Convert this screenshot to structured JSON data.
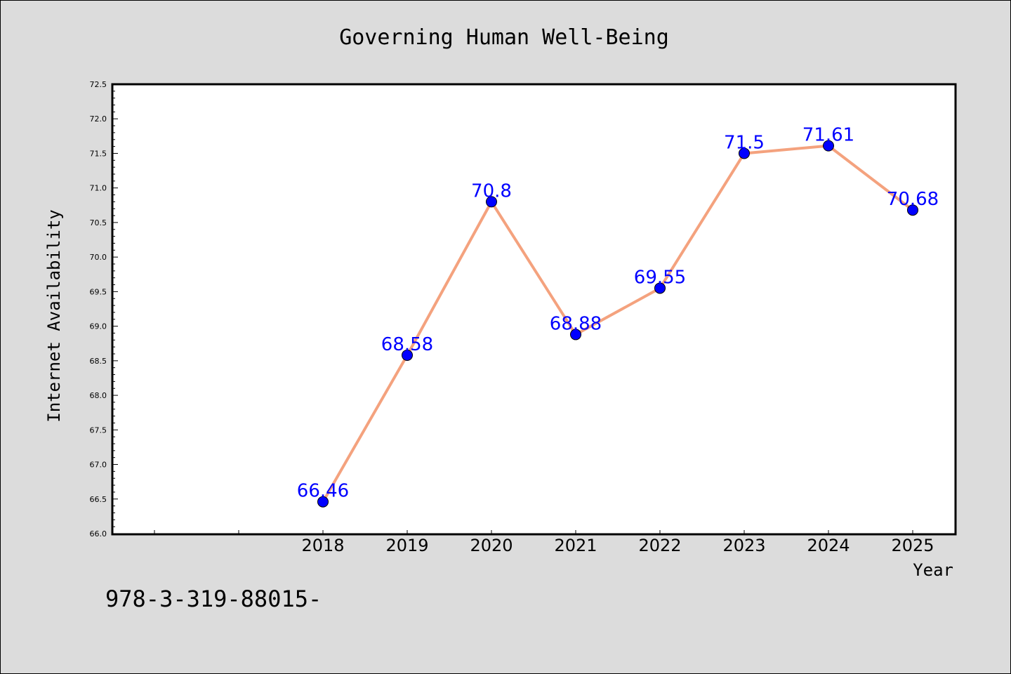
{
  "chart_data": {
    "type": "line",
    "title": "Governing Human Well-Being",
    "xlabel": "Year",
    "ylabel": "Internet Availability",
    "x": [
      "2018",
      "2019",
      "2020",
      "2021",
      "2022",
      "2023",
      "2024",
      "2025"
    ],
    "series": [
      {
        "values": [
          66.46,
          68.58,
          70.8,
          68.88,
          69.55,
          71.5,
          71.61,
          70.68
        ]
      }
    ],
    "data_labels": [
      "66.46",
      "68.58",
      "70.8",
      "68.88",
      "69.55",
      "71.5",
      "71.61",
      "70.68"
    ],
    "ylim": [
      66.0,
      72.5
    ],
    "yticks": [
      "66.0",
      "66.5",
      "67.0",
      "67.5",
      "68.0",
      "68.5",
      "69.0",
      "69.5",
      "70.0",
      "70.5",
      "71.0",
      "71.5",
      "72.0",
      "72.5"
    ],
    "grid": false,
    "colors": {
      "line": "#f4a27e",
      "marker": "#0000ff",
      "label": "#0000ff",
      "plot_bg": "#ffffff",
      "page_bg": "#dcdcdc"
    }
  },
  "footer": {
    "text": "978-3-319-88015-"
  }
}
